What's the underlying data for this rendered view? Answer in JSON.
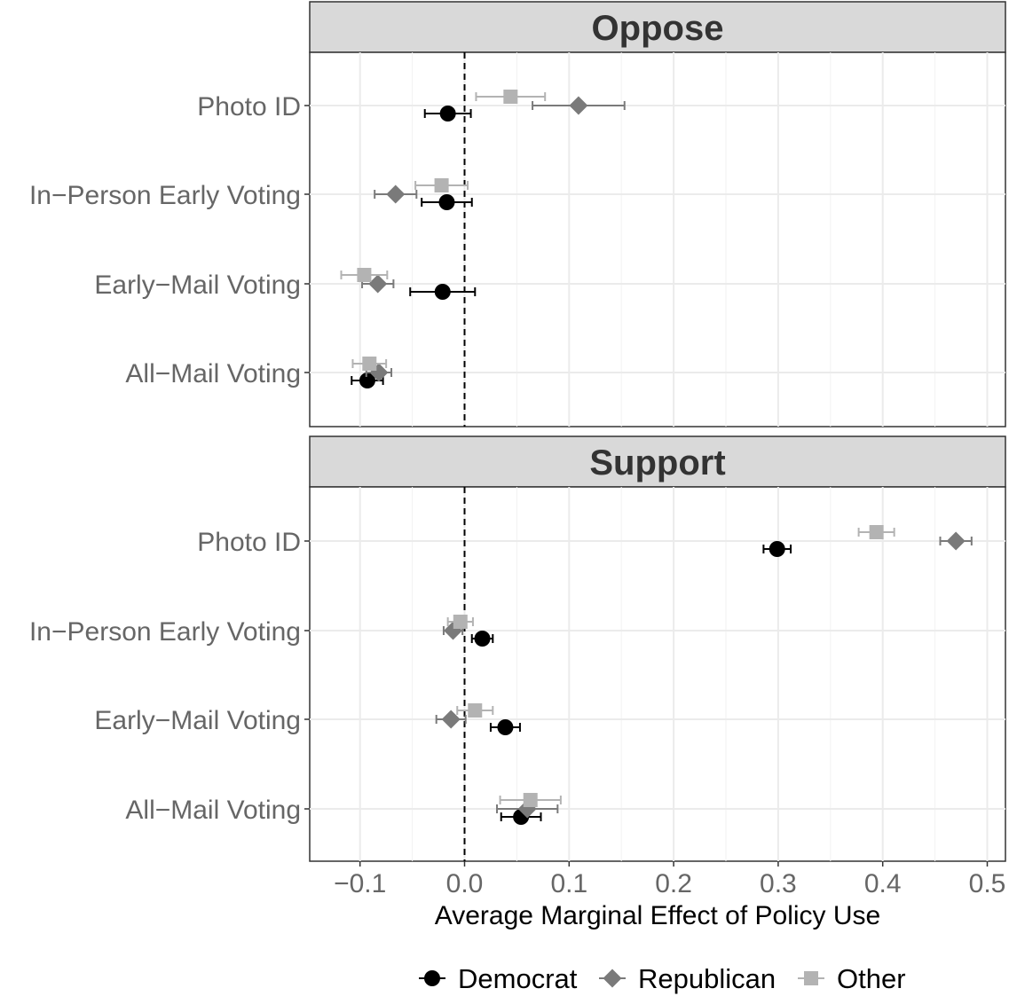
{
  "chart_data": {
    "type": "scatter",
    "subtype": "coefficient-plot-with-error-bars",
    "facets": [
      "Oppose",
      "Support"
    ],
    "categories": [
      "Photo ID",
      "In−Person Early Voting",
      "Early−Mail Voting",
      "All−Mail Voting"
    ],
    "xlabel": "Average Marginal Effect of Policy Use",
    "ylabel": "",
    "xlim": [
      -0.15,
      0.51
    ],
    "xticks": [
      -0.1,
      0.0,
      0.1,
      0.2,
      0.3,
      0.4,
      0.5
    ],
    "xtick_labels": [
      "−0.1",
      "0.0",
      "0.1",
      "0.2",
      "0.3",
      "0.4",
      "0.5"
    ],
    "reference_line": 0,
    "grid": true,
    "legend_position": "bottom",
    "series": [
      {
        "name": "Democrat",
        "color": "#000000",
        "marker": "circle",
        "data": {
          "Oppose": [
            {
              "estimate": -0.016,
              "low": -0.038,
              "high": 0.006
            },
            {
              "estimate": -0.017,
              "low": -0.041,
              "high": 0.007
            },
            {
              "estimate": -0.021,
              "low": -0.052,
              "high": 0.01
            },
            {
              "estimate": -0.093,
              "low": -0.108,
              "high": -0.078
            }
          ],
          "Support": [
            {
              "estimate": 0.299,
              "low": 0.286,
              "high": 0.312
            },
            {
              "estimate": 0.017,
              "low": 0.007,
              "high": 0.027
            },
            {
              "estimate": 0.039,
              "low": 0.025,
              "high": 0.053
            },
            {
              "estimate": 0.054,
              "low": 0.035,
              "high": 0.073
            }
          ]
        }
      },
      {
        "name": "Republican",
        "color": "#7a7a7a",
        "marker": "diamond",
        "data": {
          "Oppose": [
            {
              "estimate": 0.109,
              "low": 0.065,
              "high": 0.153
            },
            {
              "estimate": -0.066,
              "low": -0.086,
              "high": -0.046
            },
            {
              "estimate": -0.083,
              "low": -0.098,
              "high": -0.068
            },
            {
              "estimate": -0.082,
              "low": -0.094,
              "high": -0.07
            }
          ],
          "Support": [
            {
              "estimate": 0.47,
              "low": 0.455,
              "high": 0.485
            },
            {
              "estimate": -0.011,
              "low": -0.02,
              "high": -0.002
            },
            {
              "estimate": -0.013,
              "low": -0.027,
              "high": 0.001
            },
            {
              "estimate": 0.06,
              "low": 0.031,
              "high": 0.089
            }
          ]
        }
      },
      {
        "name": "Other",
        "color": "#b3b3b3",
        "marker": "square",
        "data": {
          "Oppose": [
            {
              "estimate": 0.044,
              "low": 0.011,
              "high": 0.077
            },
            {
              "estimate": -0.022,
              "low": -0.047,
              "high": 0.003
            },
            {
              "estimate": -0.096,
              "low": -0.118,
              "high": -0.074
            },
            {
              "estimate": -0.091,
              "low": -0.107,
              "high": -0.075
            }
          ],
          "Support": [
            {
              "estimate": 0.394,
              "low": 0.377,
              "high": 0.411
            },
            {
              "estimate": -0.004,
              "low": -0.016,
              "high": 0.008
            },
            {
              "estimate": 0.01,
              "low": -0.007,
              "high": 0.027
            },
            {
              "estimate": 0.063,
              "low": 0.034,
              "high": 0.092
            }
          ]
        }
      }
    ]
  }
}
